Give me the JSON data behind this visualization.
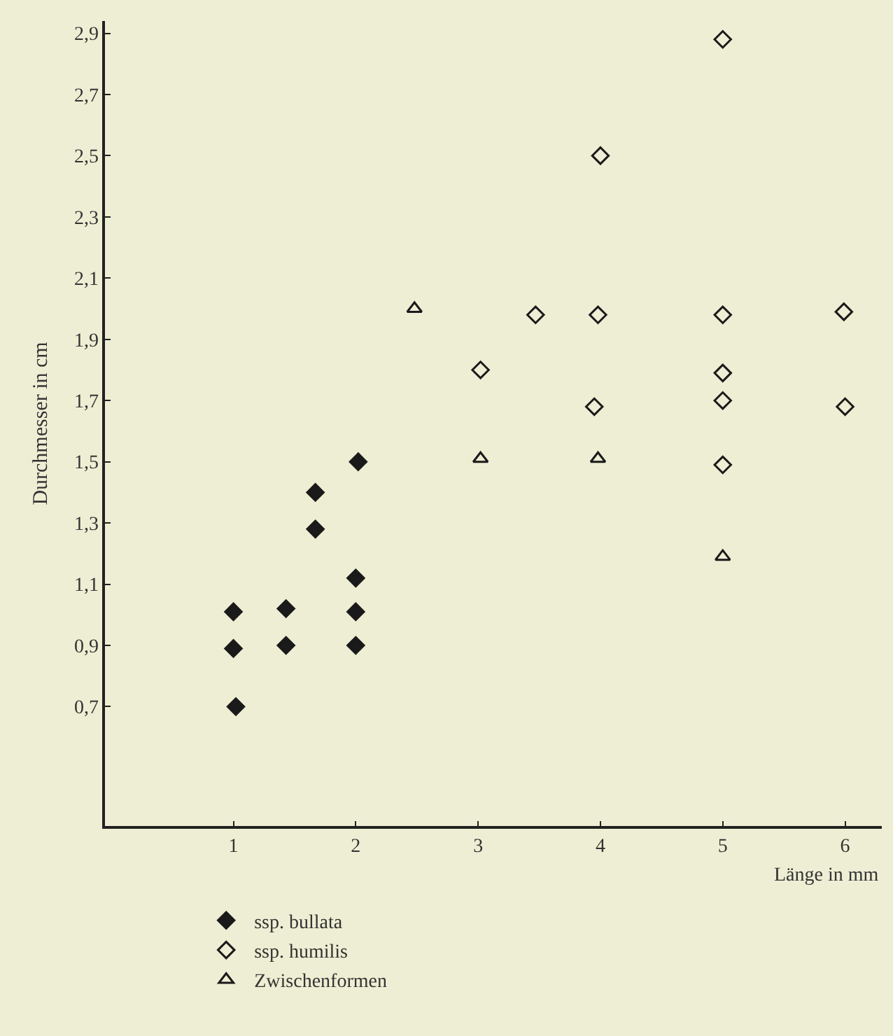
{
  "chart_data": {
    "type": "scatter",
    "xlabel": "Länge in mm",
    "ylabel": "Durchmesser in cm",
    "xlim": [
      -0.05,
      6.3
    ],
    "xticks": [
      1,
      2,
      3,
      4,
      5,
      6
    ],
    "ylim": [
      0.31,
      2.94
    ],
    "yticks": [
      {
        "value": 0.7,
        "label": "0,7"
      },
      {
        "value": 0.9,
        "label": "0,9"
      },
      {
        "value": 1.1,
        "label": "1,1"
      },
      {
        "value": 1.3,
        "label": "1,3"
      },
      {
        "value": 1.5,
        "label": "1,5"
      },
      {
        "value": 1.7,
        "label": "1,7"
      },
      {
        "value": 1.9,
        "label": "1,9"
      },
      {
        "value": 2.1,
        "label": "2,1"
      },
      {
        "value": 2.3,
        "label": "2,3"
      },
      {
        "value": 2.5,
        "label": "2,5"
      },
      {
        "value": 2.7,
        "label": "2,7"
      },
      {
        "value": 2.9,
        "label": "2,9"
      }
    ],
    "grid": false,
    "legend": "bottom left",
    "series": [
      {
        "name": "ssp. bullata",
        "color": "#1a1a1a",
        "marker": "diamond",
        "x": [
          1,
          1,
          1.02,
          1.43,
          1.43,
          1.67,
          1.67,
          2.02,
          2,
          2,
          2
        ],
        "values": [
          1.01,
          0.89,
          0.7,
          1.02,
          0.9,
          1.4,
          1.28,
          1.5,
          1.12,
          1.01,
          0.9
        ]
      },
      {
        "name": "ssp. humilis",
        "color": "#1a1a1a",
        "marker": "diamond-open",
        "x": [
          5,
          4,
          3.47,
          3.98,
          5,
          5.99,
          3.02,
          5,
          3.95,
          5,
          6,
          5
        ],
        "values": [
          2.88,
          2.5,
          1.98,
          1.98,
          1.98,
          1.99,
          1.8,
          1.79,
          1.68,
          1.7,
          1.68,
          1.49
        ]
      },
      {
        "name": "Zwischenformen",
        "color": "#1a1a1a",
        "marker": "triangle-open",
        "x": [
          2.48,
          3.02,
          3.98,
          5
        ],
        "values": [
          2.0,
          1.51,
          1.51,
          1.19
        ]
      }
    ]
  }
}
